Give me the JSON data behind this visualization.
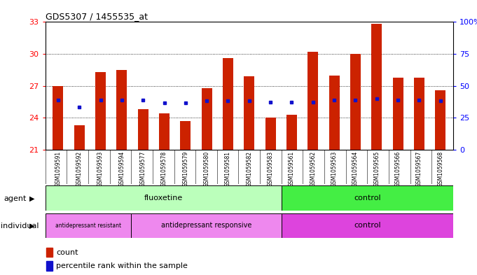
{
  "title": "GDS5307 / 1455535_at",
  "samples": [
    "GSM1059591",
    "GSM1059592",
    "GSM1059593",
    "GSM1059594",
    "GSM1059577",
    "GSM1059578",
    "GSM1059579",
    "GSM1059580",
    "GSM1059581",
    "GSM1059582",
    "GSM1059583",
    "GSM1059561",
    "GSM1059562",
    "GSM1059563",
    "GSM1059564",
    "GSM1059565",
    "GSM1059566",
    "GSM1059567",
    "GSM1059568"
  ],
  "bar_heights": [
    27.0,
    23.3,
    28.3,
    28.5,
    24.8,
    24.4,
    23.7,
    26.8,
    29.6,
    27.9,
    24.0,
    24.3,
    30.2,
    28.0,
    30.0,
    32.8,
    27.8,
    27.8,
    26.6
  ],
  "blue_dots": [
    25.7,
    25.0,
    25.7,
    25.7,
    25.7,
    25.4,
    25.4,
    25.6,
    25.6,
    25.6,
    25.5,
    25.5,
    25.5,
    25.7,
    25.7,
    25.8,
    25.7,
    25.7,
    25.6
  ],
  "ylim_left": [
    21,
    33
  ],
  "ylim_right": [
    0,
    100
  ],
  "yticks_left": [
    21,
    24,
    27,
    30,
    33
  ],
  "yticks_right": [
    0,
    25,
    50,
    75,
    100
  ],
  "right_ylabels": [
    "0",
    "25",
    "50",
    "75",
    "100%"
  ],
  "gridlines": [
    24,
    27,
    30
  ],
  "bar_color": "#cc2200",
  "dot_color": "#1111cc",
  "bg_color": "#c8c8c8",
  "plot_bg": "#ffffff",
  "fluoxetine_color": "#bbffbb",
  "control_green_color": "#44ee44",
  "individual_pink_color": "#ee88ee",
  "individual_control_color": "#dd44dd",
  "agent_label": "agent",
  "individual_label": "individual",
  "legend_count": "count",
  "legend_percentile": "percentile rank within the sample",
  "n_fluoxetine": 11,
  "n_control": 8,
  "n_resistant": 4,
  "n_responsive": 7
}
